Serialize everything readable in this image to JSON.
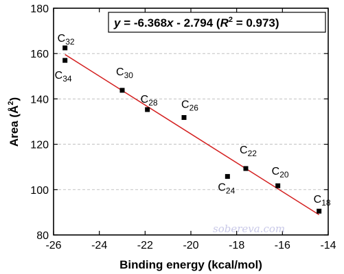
{
  "chart_data": {
    "type": "scatter",
    "title": "",
    "xlabel": "Binding energy (kcal/mol)",
    "ylabel_main": "Area (Å",
    "ylabel_sup": "2",
    "ylabel_end": ")",
    "xlim": [
      -26,
      -14
    ],
    "ylim": [
      80,
      180
    ],
    "xticks": [
      -26,
      -24,
      -22,
      -20,
      -18,
      -16,
      -14
    ],
    "yticks": [
      80,
      100,
      120,
      140,
      160,
      180
    ],
    "grid": "horizontal dashed",
    "marker_color": "#000000",
    "fit_color": "#d42020",
    "points": [
      {
        "label_base": "C",
        "label_sub": "32",
        "x": -25.5,
        "y": 162.5
      },
      {
        "label_base": "C",
        "label_sub": "34",
        "x": -25.5,
        "y": 157
      },
      {
        "label_base": "C",
        "label_sub": "30",
        "x": -23.0,
        "y": 143.8
      },
      {
        "label_base": "C",
        "label_sub": "28",
        "x": -21.9,
        "y": 135.3
      },
      {
        "label_base": "C",
        "label_sub": "26",
        "x": -20.3,
        "y": 131.8
      },
      {
        "label_base": "C",
        "label_sub": "24",
        "x": -18.4,
        "y": 105.8
      },
      {
        "label_base": "C",
        "label_sub": "22",
        "x": -17.6,
        "y": 109.3
      },
      {
        "label_base": "C",
        "label_sub": "20",
        "x": -16.2,
        "y": 101.7
      },
      {
        "label_base": "C",
        "label_sub": "18",
        "x": -14.4,
        "y": 90.5
      }
    ],
    "fit": {
      "slope": -6.368,
      "intercept": -2.794,
      "r2": 0.973,
      "x_range": [
        -25.5,
        -14.4
      ],
      "equation": {
        "y": "y",
        "mid": " = -6.368",
        "x": "x",
        "mid2": " - 2.794 (",
        "r": "R",
        "sup": "2",
        "tail": " = 0.973)"
      }
    }
  },
  "watermark": "sobereva.com"
}
